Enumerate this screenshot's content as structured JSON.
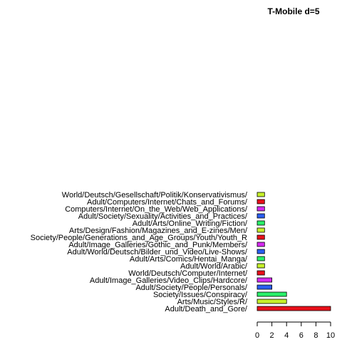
{
  "chart_data": {
    "type": "bar",
    "orientation": "horizontal",
    "title": "T-Mobile d=5",
    "xlabel": "",
    "ylabel": "",
    "xlim": [
      0,
      10
    ],
    "xticks": [
      "0",
      "2",
      "4",
      "6",
      "8",
      "10"
    ],
    "grid": false,
    "categories": [
      "Adult/Death_and_Gore/",
      "Arts/Music/Styles/R/",
      "Society/Issues/Conspiracy/",
      "Adult/Society/People/Personals/",
      "Adult/Image_Galleries/Video_Clips/Hardcore/",
      "World/Deutsch/Computer/Internet/",
      "Adult/World/Arabic/",
      "Adult/Arts/Comics/Hentai_Manga/",
      "Adult/World/Deutsch/Bilder_und_Video/Live-Shows/",
      "Adult/Image_Galleries/Gothic_and_Punk/Members/",
      "Society/People/Generations_and_Age_Groups/Youth/Youth_R",
      "Arts/Design/Fashion/Magazines_and_E-zines/Men/",
      "Adult/Arts/Online_Writing/Fiction/",
      "Adult/Society/Sexuality/Activities_and_Practices/",
      "Computers/Internet/On_the_Web/Web_Applications/",
      "Adult/Computers/Internet/Chats_and_Forums/",
      "World/Deutsch/Gesellschaft/Politik/Konservativismus/"
    ],
    "values": [
      10,
      4,
      4,
      2,
      2,
      1,
      1,
      1,
      1,
      1,
      1,
      1,
      1,
      1,
      1,
      1,
      1
    ],
    "colors": [
      "#e8101a",
      "#c6f02a",
      "#2af06a",
      "#2a5ef0",
      "#d42af0",
      "#e8101a",
      "#c6f02a",
      "#2af06a",
      "#2a5ef0",
      "#d42af0",
      "#e8101a",
      "#c6f02a",
      "#2af06a",
      "#2a5ef0",
      "#d42af0",
      "#e8101a",
      "#c6f02a"
    ]
  }
}
